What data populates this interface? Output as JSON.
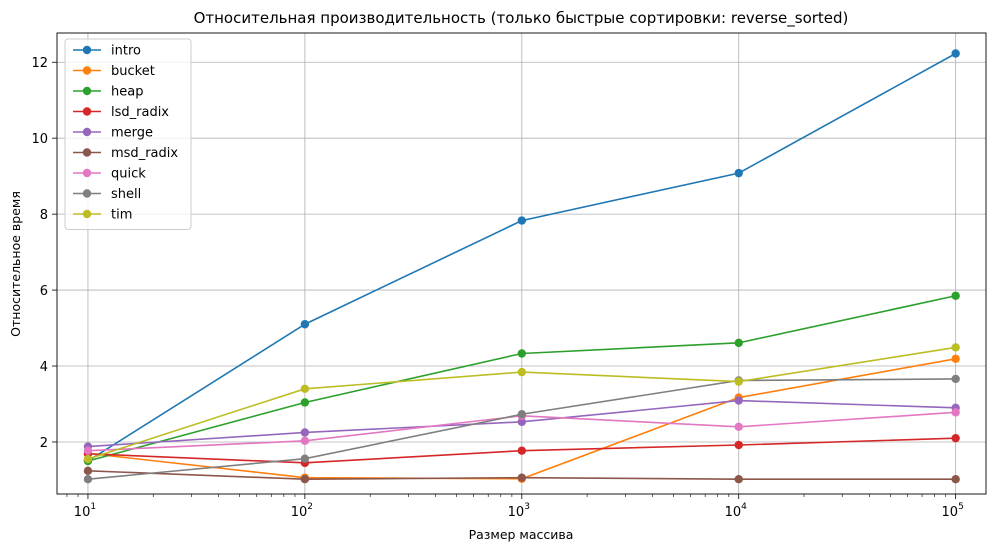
{
  "chart_data": {
    "type": "line",
    "title": "Относительная производительность (только быстрые сортировки: reverse_sorted)",
    "xlabel": "Размер массива",
    "ylabel": "Относительное время",
    "x_scale": "log",
    "x": [
      10,
      100,
      1000,
      10000,
      100000
    ],
    "x_ticks": [
      {
        "value": 10,
        "base": "10",
        "exp": "1"
      },
      {
        "value": 100,
        "base": "10",
        "exp": "2"
      },
      {
        "value": 1000,
        "base": "10",
        "exp": "3"
      },
      {
        "value": 10000,
        "base": "10",
        "exp": "4"
      },
      {
        "value": 100000,
        "base": "10",
        "exp": "5"
      }
    ],
    "y_ticks": [
      2,
      4,
      6,
      8,
      10,
      12
    ],
    "xlim": [
      7.2,
      138000
    ],
    "ylim": [
      0.63,
      12.77
    ],
    "grid": true,
    "legend_position": "top-left",
    "series": [
      {
        "name": "intro",
        "color": "#1f77b4",
        "values": [
          1.5,
          5.1,
          7.83,
          9.08,
          12.23
        ]
      },
      {
        "name": "bucket",
        "color": "#ff7f0e",
        "values": [
          1.7,
          1.06,
          1.03,
          3.17,
          4.19
        ]
      },
      {
        "name": "heap",
        "color": "#2ca02c",
        "values": [
          1.5,
          3.04,
          4.33,
          4.61,
          5.85
        ]
      },
      {
        "name": "lsd_radix",
        "color": "#d62728",
        "values": [
          1.69,
          1.45,
          1.77,
          1.92,
          2.1
        ]
      },
      {
        "name": "merge",
        "color": "#9467bd",
        "values": [
          1.88,
          2.25,
          2.53,
          3.09,
          2.9
        ]
      },
      {
        "name": "msd_radix",
        "color": "#8c564b",
        "values": [
          1.24,
          1.02,
          1.06,
          1.02,
          1.02
        ]
      },
      {
        "name": "quick",
        "color": "#e377c2",
        "values": [
          1.77,
          2.03,
          2.69,
          2.4,
          2.78
        ]
      },
      {
        "name": "shell",
        "color": "#7f7f7f",
        "values": [
          1.02,
          1.56,
          2.73,
          3.62,
          3.66
        ]
      },
      {
        "name": "tim",
        "color": "#bcbd22",
        "values": [
          1.55,
          3.4,
          3.84,
          3.59,
          4.49
        ]
      }
    ]
  }
}
